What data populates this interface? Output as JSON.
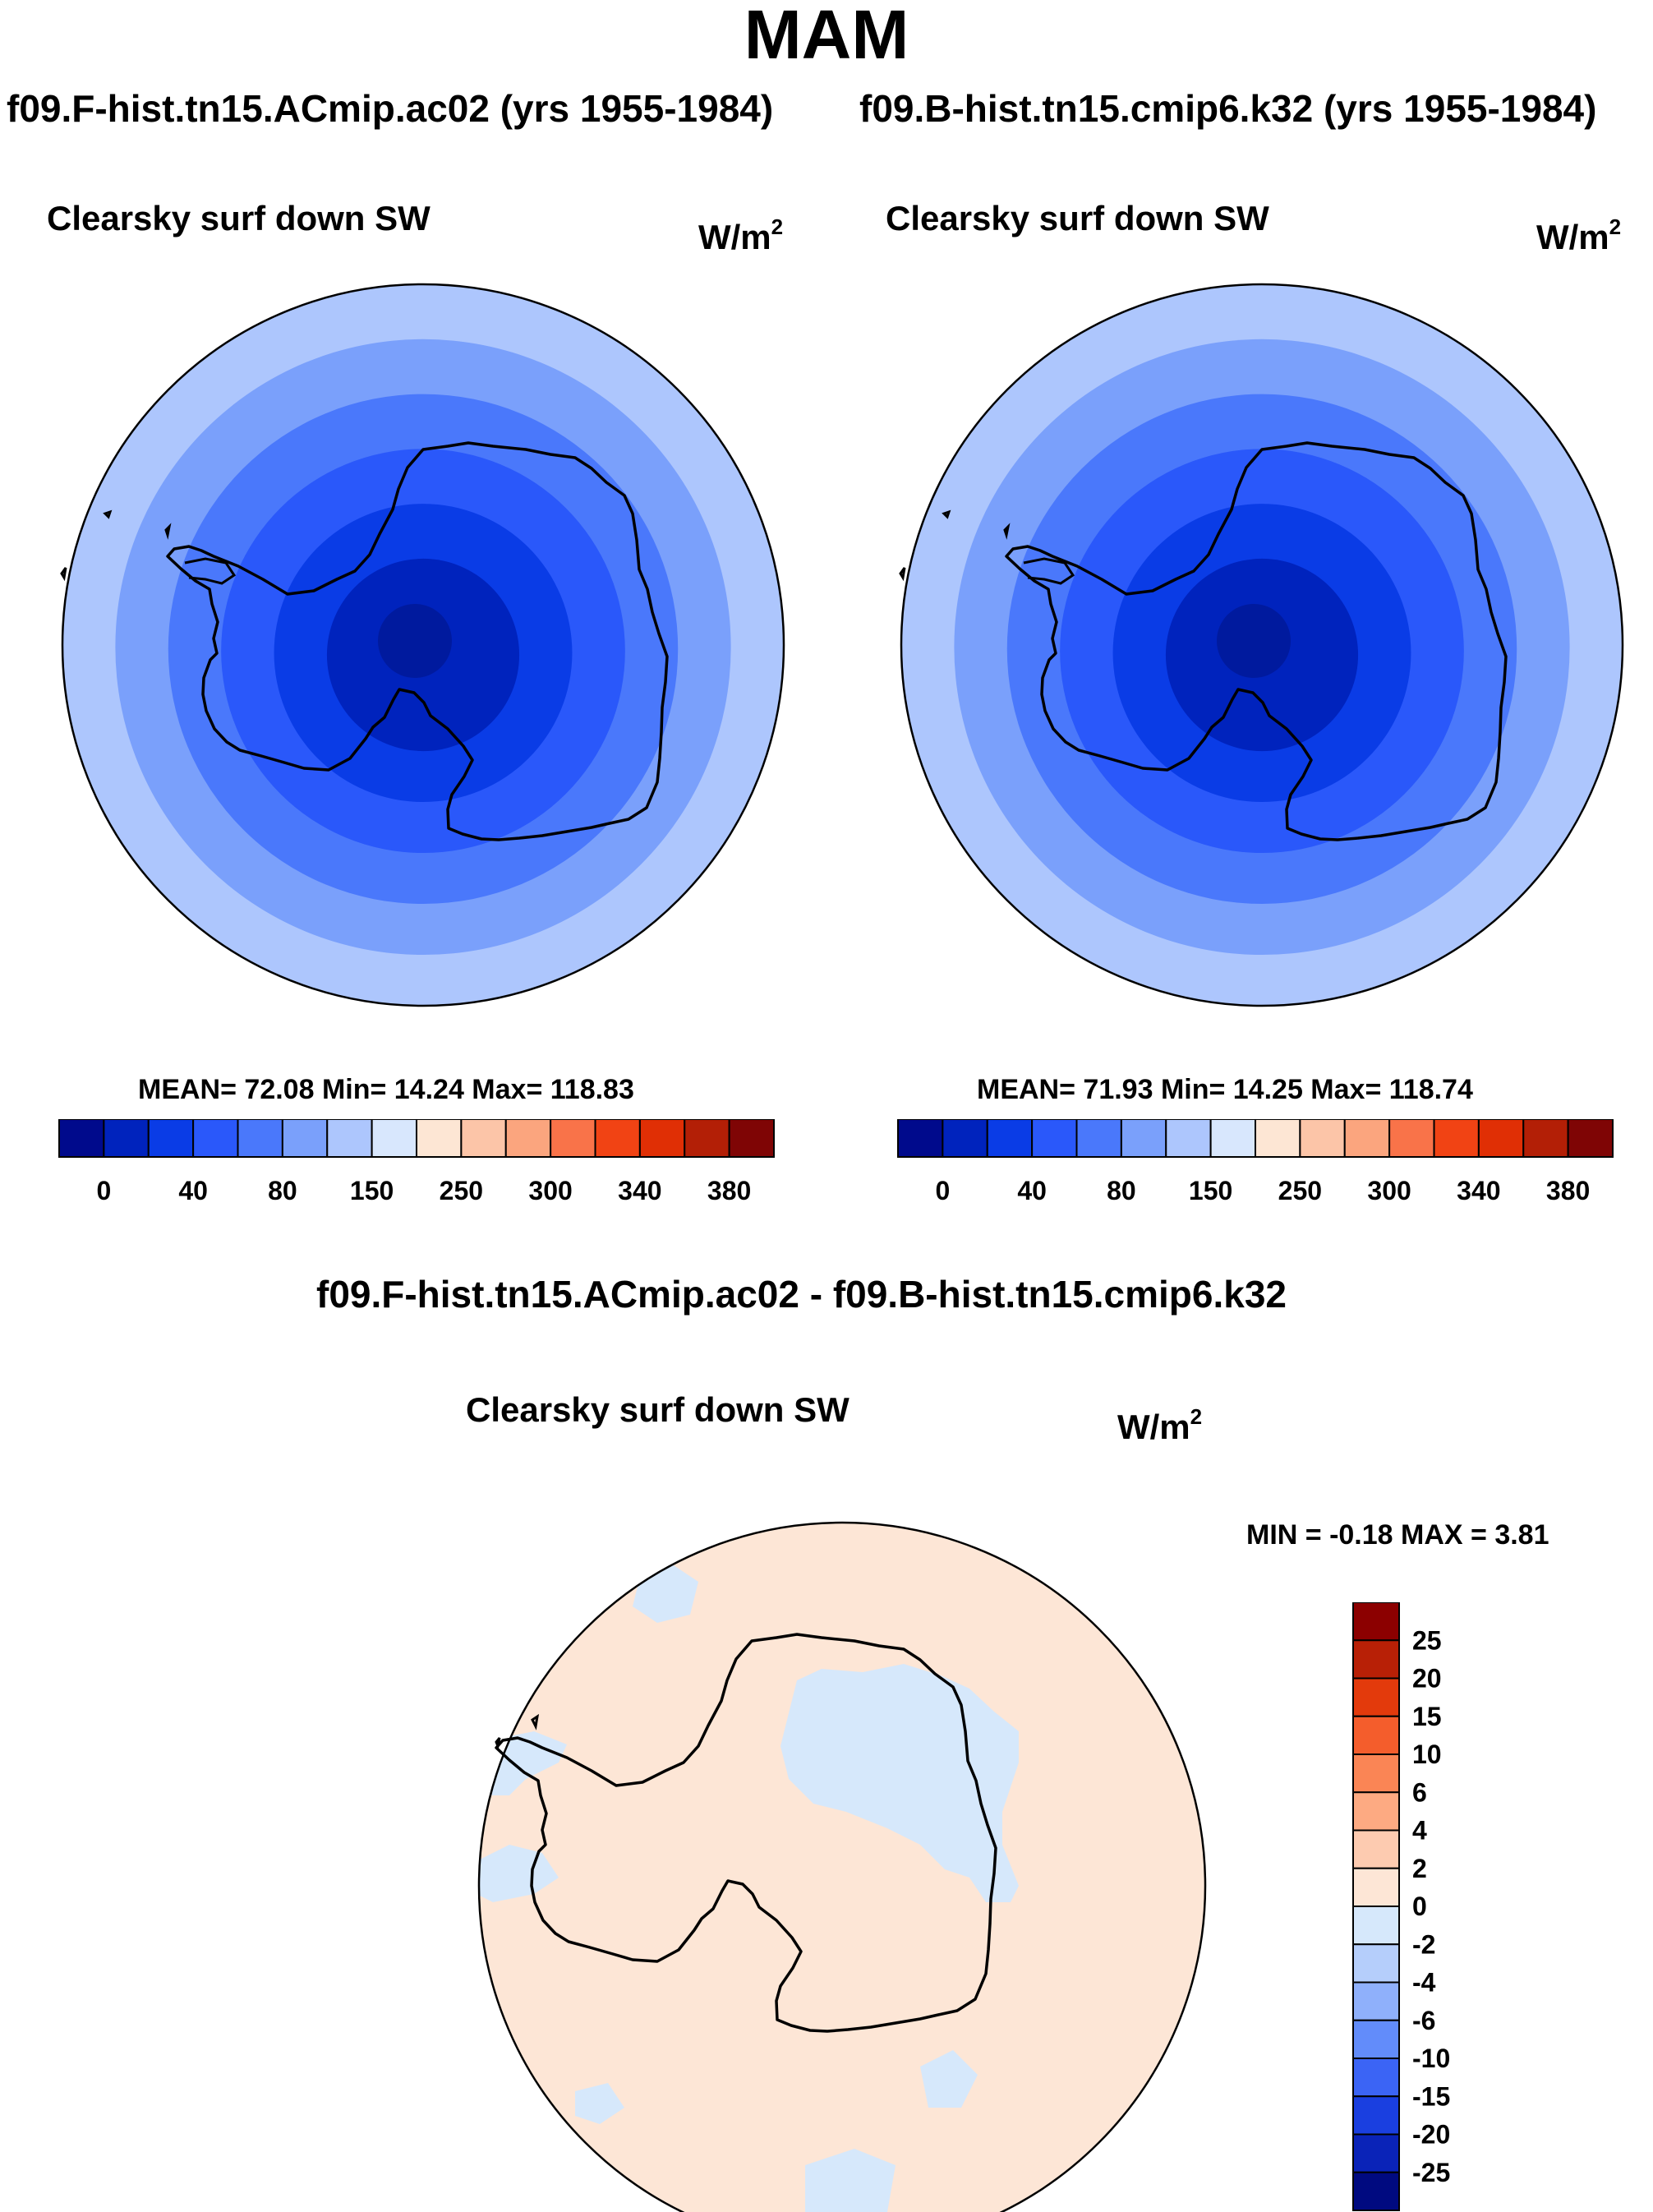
{
  "figure": {
    "title": "MAM",
    "left_run_title": "f09.F-hist.tn15.ACmip.ac02 (yrs 1955-1984)",
    "right_run_title": "f09.B-hist.tn15.cmip6.k32 (yrs 1955-1984)",
    "diff_title": "f09.F-hist.tn15.ACmip.ac02 - f09.B-hist.tn15.cmip6.k32"
  },
  "chart_data": [
    {
      "type": "heatmap",
      "title": "Clearsky surf down SW",
      "units_base": "W/m",
      "units_exp": "2",
      "stats_text": "MEAN=  72.08  Min=  14.24  Max= 118.83",
      "mean": 72.08,
      "min": 14.24,
      "max": 118.83,
      "levels": [
        "0",
        "40",
        "80",
        "150",
        "250",
        "300",
        "340",
        "380"
      ],
      "colors": [
        "#000a8c",
        "#0023bd",
        "#0a3ce6",
        "#2a58fa",
        "#4a78fb",
        "#7aa0fb",
        "#adc6fd",
        "#d8e7fd",
        "#fde6d4",
        "#fcc5a8",
        "#fba57e",
        "#f97349",
        "#f14314",
        "#e02f05",
        "#b31f06",
        "#7f0505"
      ],
      "field_bands": [
        "#adc6fd",
        "#7aa0fb",
        "#4a78fb",
        "#2a58fa",
        "#0a3ce6",
        "#0023bd"
      ]
    },
    {
      "type": "heatmap",
      "title": "Clearsky surf down SW",
      "units_base": "W/m",
      "units_exp": "2",
      "stats_text": "MEAN=  71.93  Min=  14.25  Max= 118.74",
      "mean": 71.93,
      "min": 14.25,
      "max": 118.74,
      "levels": [
        "0",
        "40",
        "80",
        "150",
        "250",
        "300",
        "340",
        "380"
      ],
      "colors": [
        "#000a8c",
        "#0023bd",
        "#0a3ce6",
        "#2a58fa",
        "#4a78fb",
        "#7aa0fb",
        "#adc6fd",
        "#d8e7fd",
        "#fde6d4",
        "#fcc5a8",
        "#fba57e",
        "#f97349",
        "#f14314",
        "#e02f05",
        "#b31f06",
        "#7f0505"
      ],
      "field_bands": [
        "#adc6fd",
        "#7aa0fb",
        "#4a78fb",
        "#2a58fa",
        "#0a3ce6",
        "#0023bd"
      ]
    },
    {
      "type": "heatmap",
      "title": "Clearsky surf down SW",
      "units_base": "W/m",
      "units_exp": "2",
      "minmax_text": "MIN =  -0.18 MAX =   3.81",
      "min": -0.18,
      "max": 3.81,
      "levels": [
        "25",
        "20",
        "15",
        "10",
        "6",
        "4",
        "2",
        "0",
        "-2",
        "-4",
        "-6",
        "-10",
        "-15",
        "-20",
        "-25"
      ],
      "colors": [
        "#8c0000",
        "#b82006",
        "#e33a0c",
        "#f45d2c",
        "#fa8555",
        "#fdaa82",
        "#fdcbb0",
        "#fde6d6",
        "#d6e8fb",
        "#b5cefb",
        "#8fb0fb",
        "#628cfa",
        "#3b64f5",
        "#1a3fe0",
        "#0a23b8",
        "#000a80"
      ],
      "background": "#fde6d6",
      "negative_patch": "#d6e8fb"
    }
  ]
}
